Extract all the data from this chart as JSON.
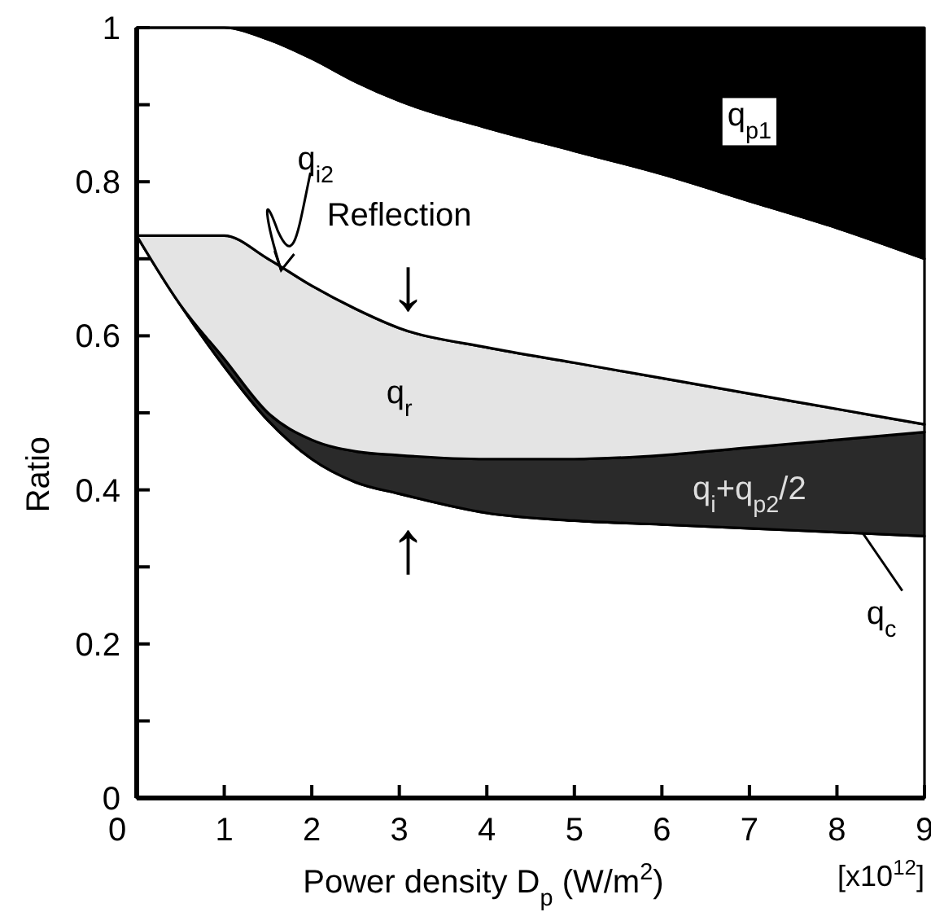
{
  "chart_data": {
    "type": "area",
    "stacked": true,
    "xlabel": "Power density  D$_{p}$ (W/m$^{2}$)",
    "ylabel": "Ratio",
    "x": [
      0,
      0.5,
      1,
      1.5,
      2,
      2.5,
      3,
      4,
      5,
      6,
      7,
      8,
      9
    ],
    "xlim": [
      0,
      9
    ],
    "xticks": [
      0,
      1,
      2,
      3,
      4,
      5,
      6,
      7,
      8,
      9
    ],
    "ylim": [
      0,
      1
    ],
    "yticks": [
      0,
      {
        "value": 0.1,
        "label": null
      },
      0.2,
      {
        "value": 0.3,
        "label": null
      },
      0.4,
      {
        "value": 0.5,
        "label": null
      },
      0.6,
      {
        "value": 0.7,
        "label": null
      },
      0.8,
      {
        "value": 0.9,
        "label": null
      },
      1
    ],
    "series": [
      {
        "color": "#ffffff",
        "values": [
          0.73,
          0.64,
          0.56,
          0.49,
          0.44,
          0.41,
          0.395,
          0.37,
          0.36,
          0.355,
          0.35,
          0.345,
          0.34
        ]
      },
      {
        "name": "q$_{i}$+q$_{p2}$/2",
        "color": "#2a2a2a",
        "values": [
          0,
          0,
          0.01,
          0.01,
          0.025,
          0.04,
          0.05,
          0.07,
          0.08,
          0.09,
          0.105,
          0.12,
          0.135
        ]
      },
      {
        "name": "q$_{r}$",
        "color": "#e4e4e4",
        "values": [
          0,
          0.09,
          0.16,
          0.2,
          0.2,
          0.185,
          0.165,
          0.145,
          0.125,
          0.1,
          0.07,
          0.04,
          0.01
        ]
      },
      {
        "name": "Reflection",
        "color": "#ffffff",
        "values": [
          0.27,
          0.27,
          0.27,
          0.285,
          0.295,
          0.295,
          0.295,
          0.285,
          0.275,
          0.265,
          0.25,
          0.235,
          0.215
        ]
      },
      {
        "name": "q$_{p1}$",
        "color": "#000000",
        "values": [
          0,
          0,
          0,
          0.015,
          0.04,
          0.07,
          0.095,
          0.13,
          0.16,
          0.19,
          0.225,
          0.26,
          0.3
        ]
      }
    ],
    "annotations": [
      {
        "text": "q$_{i2}$",
        "x": 1.65,
        "y": 0.685
      },
      {
        "text": "q$_{c}$",
        "x": 8.3,
        "y": 0.343
      },
      {
        "text": "↓",
        "x": 3.1,
        "y": 0.605
      },
      {
        "text": "↑",
        "x": 3.1,
        "y": 0.39
      },
      "[x10$^{12}$]"
    ]
  }
}
